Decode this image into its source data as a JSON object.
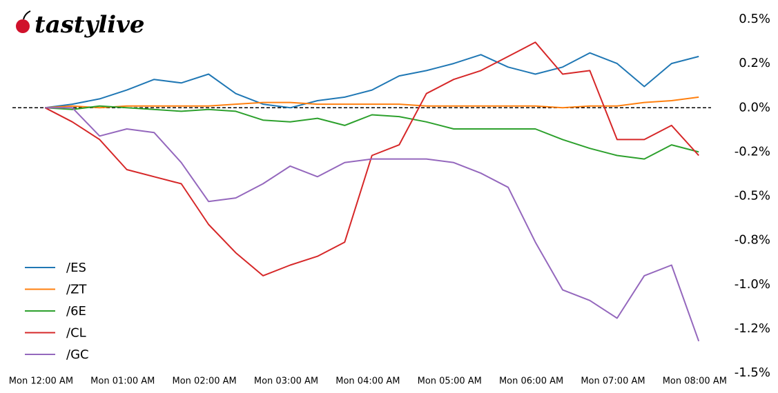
{
  "brand": "tastylive",
  "chart_data": {
    "type": "line",
    "x": [
      3,
      23,
      43,
      63,
      83,
      103,
      123,
      143,
      163,
      183,
      203,
      223,
      243,
      263,
      283,
      303,
      323,
      343,
      363,
      383,
      403,
      423,
      443,
      463,
      483
    ],
    "xlim": [
      -21,
      492
    ],
    "xticks": [
      {
        "value": 0,
        "label": "Mon 12:00 AM"
      },
      {
        "value": 60,
        "label": "Mon 01:00 AM"
      },
      {
        "value": 120,
        "label": "Mon 02:00 AM"
      },
      {
        "value": 180,
        "label": "Mon 03:00 AM"
      },
      {
        "value": 240,
        "label": "Mon 04:00 AM"
      },
      {
        "value": 300,
        "label": "Mon 05:00 AM"
      },
      {
        "value": 360,
        "label": "Mon 06:00 AM"
      },
      {
        "value": 420,
        "label": "Mon 07:00 AM"
      },
      {
        "value": 480,
        "label": "Mon 08:00 AM"
      }
    ],
    "ylim": [
      -1.5,
      0.5
    ],
    "yticks": [
      {
        "value": 0.5,
        "label": "0.5%"
      },
      {
        "value": 0.25,
        "label": "0.2%"
      },
      {
        "value": 0,
        "label": "0.0%"
      },
      {
        "value": -0.25,
        "label": "-0.2%"
      },
      {
        "value": -0.5,
        "label": "-0.5%"
      },
      {
        "value": -0.75,
        "label": "-0.8%"
      },
      {
        "value": -1.0,
        "label": "-1.0%"
      },
      {
        "value": -1.25,
        "label": "-1.2%"
      },
      {
        "value": -1.5,
        "label": "-1.5%"
      }
    ],
    "hline": 0,
    "legend": "lower left",
    "series": [
      {
        "name": "/ES",
        "color": "#1f77b4",
        "values": [
          0,
          0.02,
          0.05,
          0.1,
          0.16,
          0.14,
          0.19,
          0.08,
          0.02,
          0,
          0.04,
          0.06,
          0.1,
          0.18,
          0.21,
          0.25,
          0.3,
          0.23,
          0.19,
          0.23,
          0.31,
          0.25,
          0.12,
          0.25,
          0.29
        ]
      },
      {
        "name": "/ZT",
        "color": "#ff7f0e",
        "values": [
          0,
          0.01,
          0,
          0.01,
          0.01,
          0.01,
          0.01,
          0.02,
          0.03,
          0.03,
          0.02,
          0.02,
          0.02,
          0.02,
          0.01,
          0.01,
          0.01,
          0.01,
          0.01,
          0,
          0.01,
          0.01,
          0.03,
          0.04,
          0.06
        ]
      },
      {
        "name": "/6E",
        "color": "#2ca02c",
        "values": [
          0,
          -0.01,
          0.01,
          0,
          -0.01,
          -0.02,
          -0.01,
          -0.02,
          -0.07,
          -0.08,
          -0.06,
          -0.1,
          -0.04,
          -0.05,
          -0.08,
          -0.12,
          -0.12,
          -0.12,
          -0.12,
          -0.18,
          -0.23,
          -0.27,
          -0.29,
          -0.21,
          -0.25
        ]
      },
      {
        "name": "/CL",
        "color": "#d62728",
        "values": [
          0,
          -0.08,
          -0.18,
          -0.35,
          -0.39,
          -0.43,
          -0.66,
          -0.82,
          -0.95,
          -0.89,
          -0.84,
          -0.76,
          -0.27,
          -0.21,
          0.08,
          0.16,
          0.21,
          0.29,
          0.37,
          0.19,
          0.21,
          -0.18,
          -0.18,
          -0.1,
          -0.27
        ]
      },
      {
        "name": "/GC",
        "color": "#9467bd",
        "values": [
          0,
          0,
          -0.16,
          -0.12,
          -0.14,
          -0.31,
          -0.53,
          -0.51,
          -0.43,
          -0.33,
          -0.39,
          -0.31,
          -0.29,
          -0.29,
          -0.29,
          -0.31,
          -0.37,
          -0.45,
          -0.76,
          -1.03,
          -1.09,
          -1.19,
          -0.95,
          -0.89,
          -1.32
        ]
      }
    ]
  }
}
